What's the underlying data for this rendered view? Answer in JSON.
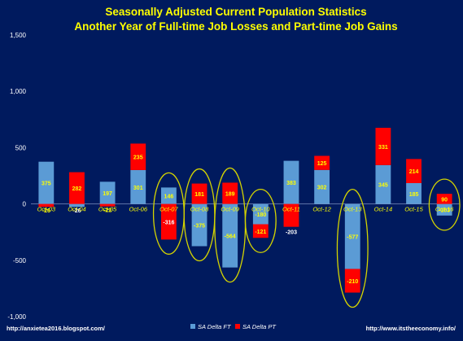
{
  "chart_data": {
    "type": "bar",
    "stacked": true,
    "title": "Seasonally Adjusted Current Population Statistics",
    "subtitle": "Another Year of Full-time Job Losses and Part-time Job Gains",
    "categories": [
      "Oct-03",
      "Oct-04",
      "Oct-05",
      "Oct-06",
      "Oct-07",
      "Oct-08",
      "Oct-09",
      "Oct-10",
      "Oct-11",
      "Oct-12",
      "Oct-13",
      "Oct-14",
      "Oct-15",
      "Oct-16"
    ],
    "series": [
      {
        "name": "SA Delta FT",
        "color": "#5b9bd5",
        "values": [
          375,
          -26,
          197,
          301,
          146,
          -375,
          -564,
          -180,
          383,
          302,
          -577,
          345,
          185,
          -103
        ],
        "labels": [
          "375",
          "-26",
          "197",
          "301",
          "146",
          "-375",
          "-564",
          "-180",
          "383",
          "302",
          "-577",
          "345",
          "185",
          "-103"
        ]
      },
      {
        "name": "SA Delta PT",
        "color": "#ff0000",
        "values": [
          -26,
          282,
          -22,
          235,
          -316,
          181,
          189,
          -121,
          -203,
          125,
          -210,
          331,
          214,
          90
        ],
        "labels": [
          "-26",
          "282",
          "-22",
          "235",
          "-316",
          "181",
          "189",
          "-121",
          "-203",
          "125",
          "-210",
          "331",
          "214",
          "90"
        ]
      }
    ],
    "yticks": [
      "1,500",
      "1,000",
      "500",
      "0",
      "-500",
      "-1,000"
    ],
    "ylim": [
      -1000,
      1500
    ],
    "grid": false,
    "legend_position": "bottom-center",
    "highlight_ellipses": [
      "Oct-07",
      "Oct-08",
      "Oct-09",
      "Oct-10",
      "Oct-13",
      "Oct-16"
    ],
    "footer_left": "http://anxietea2016.blogspot.com/",
    "footer_right": "http://www.itstheeconomy.info/",
    "colors": {
      "background": "#001a5e",
      "text": "#ffff00",
      "ellipse": "#d4d400"
    }
  }
}
